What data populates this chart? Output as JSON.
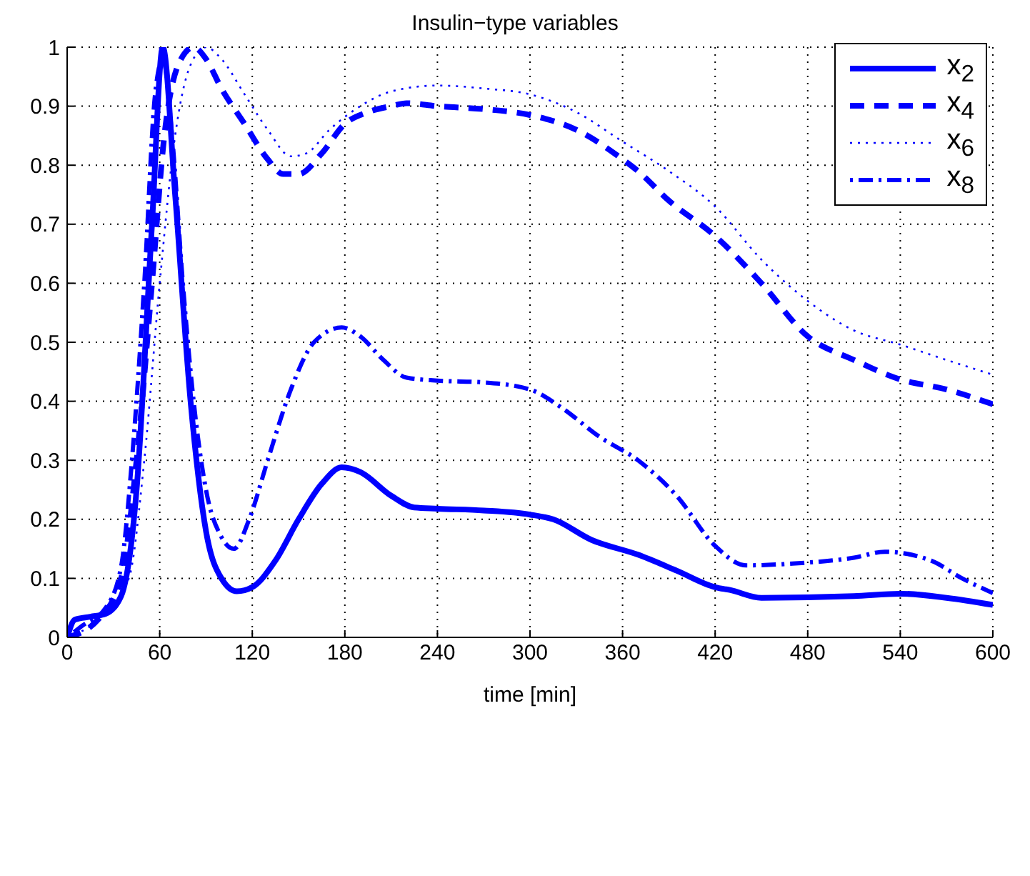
{
  "chart_data": {
    "type": "line",
    "title": "Insulin−type variables",
    "xlabel": "time [min]",
    "xlim": [
      0,
      600
    ],
    "xticks": [
      0,
      60,
      120,
      180,
      240,
      300,
      360,
      420,
      480,
      540,
      600
    ],
    "ylim": [
      0,
      1
    ],
    "yticks": [
      0,
      0.1,
      0.2,
      0.3,
      0.4,
      0.5,
      0.6,
      0.7,
      0.8,
      0.9,
      1
    ],
    "grid": true,
    "legend": "top right",
    "marker": "none",
    "series": [
      {
        "name": "x$_{2}$",
        "color": "#0000ff",
        "line_style": "solid",
        "x": [
          0,
          5,
          15,
          25,
          35,
          45,
          55,
          62,
          70,
          80,
          90,
          100,
          110,
          120,
          135,
          150,
          165,
          178,
          190,
          210,
          225,
          240,
          270,
          300,
          315,
          340,
          370,
          395,
          420,
          430,
          450,
          510,
          540,
          570,
          600
        ],
        "values": [
          0,
          0.03,
          0.035,
          0.04,
          0.07,
          0.25,
          0.7,
          1.0,
          0.75,
          0.4,
          0.18,
          0.1,
          0.078,
          0.085,
          0.13,
          0.2,
          0.26,
          0.288,
          0.28,
          0.24,
          0.22,
          0.218,
          0.215,
          0.208,
          0.2,
          0.165,
          0.14,
          0.113,
          0.085,
          0.08,
          0.067,
          0.07,
          0.074,
          0.067,
          0.055
        ]
      },
      {
        "name": "x$_{4}$",
        "color": "#0000ff",
        "line_style": "dashed",
        "x": [
          0,
          20,
          35,
          45,
          55,
          63,
          72,
          82,
          90,
          100,
          115,
          130,
          140,
          150,
          165,
          180,
          195,
          210,
          220,
          240,
          270,
          300,
          330,
          360,
          370,
          390,
          420,
          450,
          480,
          510,
          540,
          570,
          600
        ],
        "values": [
          0,
          0.03,
          0.1,
          0.3,
          0.6,
          0.85,
          0.97,
          1.0,
          0.98,
          0.93,
          0.87,
          0.81,
          0.785,
          0.785,
          0.82,
          0.87,
          0.89,
          0.9,
          0.905,
          0.9,
          0.895,
          0.885,
          0.86,
          0.81,
          0.79,
          0.74,
          0.68,
          0.6,
          0.51,
          0.47,
          0.437,
          0.42,
          0.395
        ]
      },
      {
        "name": "x$_{6}$",
        "color": "#0000ff",
        "line_style": "dotted",
        "x": [
          0,
          20,
          40,
          50,
          60,
          70,
          80,
          90,
          100,
          115,
          130,
          145,
          155,
          170,
          190,
          210,
          240,
          270,
          300,
          330,
          360,
          390,
          420,
          450,
          480,
          510,
          540,
          570,
          600
        ],
        "values": [
          0,
          0.03,
          0.1,
          0.3,
          0.6,
          0.85,
          0.97,
          1.0,
          0.98,
          0.92,
          0.86,
          0.815,
          0.82,
          0.86,
          0.9,
          0.925,
          0.935,
          0.93,
          0.92,
          0.89,
          0.84,
          0.79,
          0.73,
          0.64,
          0.57,
          0.52,
          0.496,
          0.47,
          0.445
        ]
      },
      {
        "name": "x$_{8}$",
        "color": "#0000ff",
        "line_style": "dashdot",
        "x": [
          0,
          10,
          25,
          35,
          42,
          50,
          57,
          62,
          68,
          75,
          82,
          90,
          100,
          108,
          118,
          130,
          145,
          160,
          178,
          190,
          205,
          220,
          240,
          270,
          300,
          320,
          345,
          370,
          395,
          420,
          440,
          470,
          510,
          530,
          560,
          580,
          600
        ],
        "values": [
          0,
          0.02,
          0.05,
          0.12,
          0.3,
          0.6,
          0.92,
          0.98,
          0.85,
          0.6,
          0.4,
          0.25,
          0.17,
          0.15,
          0.2,
          0.3,
          0.42,
          0.5,
          0.525,
          0.51,
          0.47,
          0.44,
          0.435,
          0.432,
          0.42,
          0.39,
          0.34,
          0.3,
          0.24,
          0.155,
          0.122,
          0.125,
          0.135,
          0.145,
          0.13,
          0.1,
          0.075
        ]
      }
    ]
  }
}
